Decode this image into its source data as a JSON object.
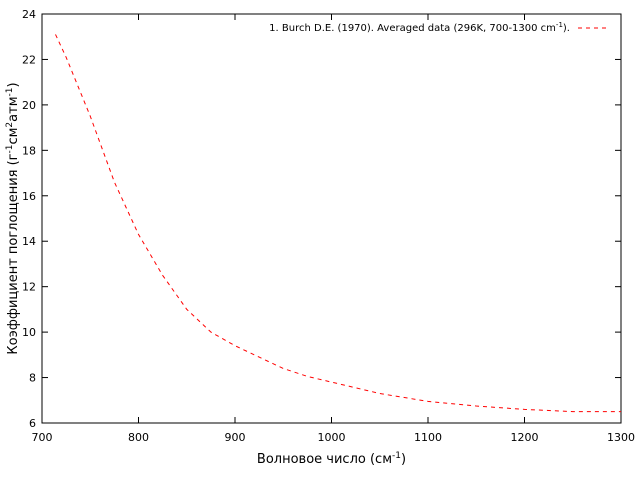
{
  "chart_data": {
    "type": "line",
    "title": "",
    "xlabel": {
      "text": "Волновое число (см",
      "sup": "-1",
      "after": ")"
    },
    "ylabel": {
      "parts": [
        {
          "t": "Коэффициент поглощения (г"
        },
        {
          "t": "-1",
          "sup": true
        },
        {
          "t": "см"
        },
        {
          "t": "2",
          "sup": true
        },
        {
          "t": "атм"
        },
        {
          "t": "-1",
          "sup": true
        },
        {
          "t": ")"
        }
      ]
    },
    "xlim": [
      700,
      1300
    ],
    "ylim": [
      6,
      24
    ],
    "xticks": [
      700,
      800,
      900,
      1000,
      1100,
      1200,
      1300
    ],
    "yticks": [
      6,
      8,
      10,
      12,
      14,
      16,
      18,
      20,
      22,
      24
    ],
    "grid": false,
    "legend_position": "top-right",
    "series": [
      {
        "name": "1. Burch D.E. (1970). Averaged data  (296K, 700-1300 cm",
        "name_sup": "-1",
        "name_after": ").",
        "color": "#ff0000",
        "style": "dashed",
        "x": [
          714,
          725,
          750,
          775,
          800,
          825,
          850,
          875,
          900,
          925,
          950,
          975,
          1000,
          1050,
          1100,
          1150,
          1200,
          1250,
          1300
        ],
        "y": [
          23.1,
          22.1,
          19.5,
          16.6,
          14.3,
          12.5,
          11.0,
          10.0,
          9.4,
          8.9,
          8.4,
          8.05,
          7.8,
          7.3,
          6.95,
          6.75,
          6.6,
          6.5,
          6.5
        ]
      }
    ]
  }
}
